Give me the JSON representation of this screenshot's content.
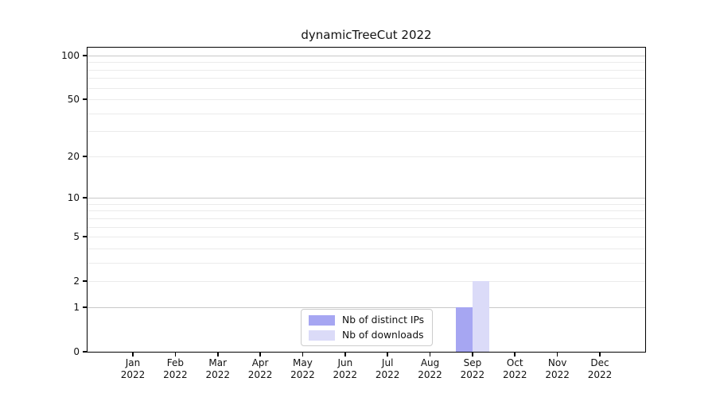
{
  "chart_data": {
    "type": "bar",
    "title": "dynamicTreeCut 2022",
    "categories": [
      {
        "month": "Jan",
        "year": "2022"
      },
      {
        "month": "Feb",
        "year": "2022"
      },
      {
        "month": "Mar",
        "year": "2022"
      },
      {
        "month": "Apr",
        "year": "2022"
      },
      {
        "month": "May",
        "year": "2022"
      },
      {
        "month": "Jun",
        "year": "2022"
      },
      {
        "month": "Jul",
        "year": "2022"
      },
      {
        "month": "Aug",
        "year": "2022"
      },
      {
        "month": "Sep",
        "year": "2022"
      },
      {
        "month": "Oct",
        "year": "2022"
      },
      {
        "month": "Nov",
        "year": "2022"
      },
      {
        "month": "Dec",
        "year": "2022"
      }
    ],
    "series": [
      {
        "name": "Nb of distinct IPs",
        "color": "#a6a6f2",
        "values": [
          0,
          0,
          0,
          0,
          0,
          0,
          0,
          0,
          1,
          0,
          0,
          0
        ]
      },
      {
        "name": "Nb of downloads",
        "color": "#dbdbf8",
        "values": [
          0,
          0,
          0,
          0,
          0,
          0,
          0,
          0,
          2,
          0,
          0,
          0
        ]
      }
    ],
    "y_scale": "log1p",
    "ylim": [
      0,
      113
    ],
    "y_ticks": [
      0,
      1,
      2,
      5,
      10,
      20,
      50,
      100
    ],
    "grid_major": [
      1,
      10,
      100
    ],
    "grid_minor": [
      2,
      3,
      4,
      5,
      6,
      7,
      8,
      9,
      20,
      30,
      40,
      50,
      60,
      70,
      80,
      90
    ],
    "legend_position": "lower-center",
    "axis_color": "#000000",
    "grid_major_color": "#c8c8c8",
    "grid_minor_color": "#ebebeb"
  }
}
